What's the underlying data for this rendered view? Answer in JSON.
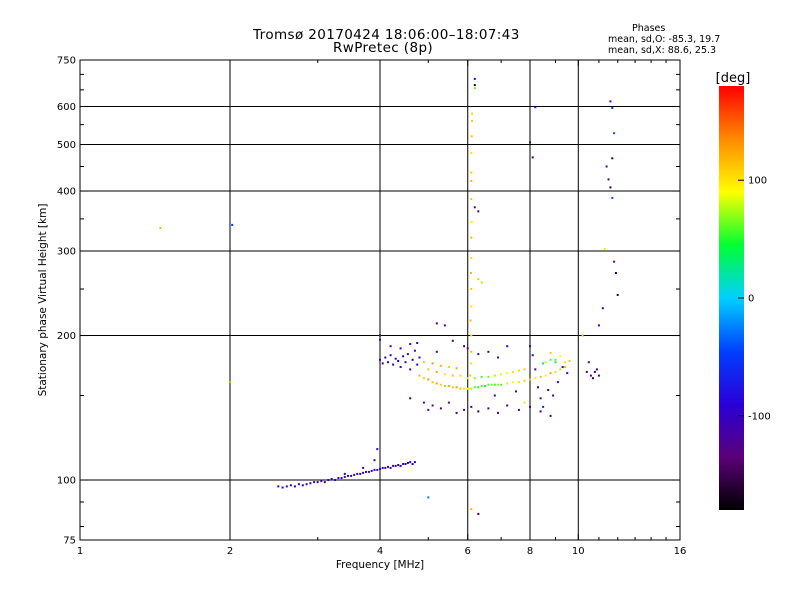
{
  "header": {
    "title_line1": "Tromsø 20170424 18:06:00–18:07:43",
    "title_line2": "RwPretec (8p)",
    "stats_title": "Phases",
    "stats_line1": "mean, sd,O: -85.3, 19.7",
    "stats_line2": "mean, sd,X:  88.6, 25.3"
  },
  "chart_data": {
    "type": "scatter",
    "xlabel": "Frequency [MHz]",
    "ylabel": "Stationary phase Virtual Height [km]",
    "x_scale": "log",
    "y_scale": "log",
    "xlim": [
      1,
      16
    ],
    "ylim": [
      75,
      750
    ],
    "x_ticks": [
      1,
      2,
      4,
      6,
      8,
      10,
      16
    ],
    "x_grid": [
      2,
      4,
      6,
      8,
      10
    ],
    "y_ticks": [
      75,
      100,
      200,
      300,
      400,
      500,
      600,
      750
    ],
    "y_grid": [
      100,
      200,
      300,
      400,
      500,
      600
    ],
    "grid": true,
    "colorbar": {
      "label": "[deg]",
      "range": [
        -180,
        180
      ],
      "ticks": [
        100,
        0,
        -100
      ],
      "colors": [
        "#000000",
        "#5a0078",
        "#2a00d8",
        "#0040ff",
        "#00d0ff",
        "#00ff30",
        "#ffff00",
        "#ff8a00",
        "#ff0000"
      ]
    },
    "series": [
      {
        "points": [
          [
            2.5,
            97,
            -110
          ],
          [
            2.55,
            96.5,
            -95
          ],
          [
            2.6,
            97,
            -105
          ],
          [
            2.65,
            97.5,
            -90
          ],
          [
            2.7,
            97,
            -100
          ],
          [
            2.75,
            98,
            -85
          ],
          [
            2.8,
            97.5,
            -95
          ],
          [
            2.85,
            98,
            -100
          ],
          [
            2.9,
            98.5,
            -88
          ],
          [
            2.95,
            99,
            -97
          ],
          [
            3.0,
            99,
            -92
          ],
          [
            3.05,
            99.5,
            -105
          ],
          [
            3.1,
            99,
            -88
          ],
          [
            3.15,
            100,
            -98
          ],
          [
            3.2,
            100.5,
            -102
          ],
          [
            3.25,
            100,
            -90
          ],
          [
            3.3,
            101,
            -96
          ],
          [
            3.35,
            101,
            -110
          ],
          [
            3.4,
            101.5,
            -85
          ],
          [
            3.45,
            102,
            -100
          ],
          [
            3.5,
            102,
            -94
          ],
          [
            3.55,
            102.5,
            -98
          ],
          [
            3.6,
            103,
            -105
          ],
          [
            3.65,
            103,
            -90
          ],
          [
            3.7,
            103.5,
            -100
          ],
          [
            3.75,
            104,
            -95
          ],
          [
            3.8,
            104,
            -108
          ],
          [
            3.85,
            104.5,
            -92
          ],
          [
            3.9,
            105,
            -100
          ],
          [
            3.95,
            105,
            -96
          ],
          [
            4.0,
            105.5,
            -104
          ],
          [
            4.05,
            106,
            -90
          ],
          [
            4.1,
            106,
            -100
          ],
          [
            4.15,
            106.5,
            -95
          ],
          [
            4.2,
            106,
            -110
          ],
          [
            4.25,
            107,
            -92
          ],
          [
            4.3,
            107,
            -99
          ],
          [
            4.35,
            107.5,
            -104
          ],
          [
            4.4,
            107,
            -95
          ],
          [
            4.45,
            108,
            -100
          ],
          [
            4.5,
            108,
            -106
          ],
          [
            4.55,
            108.5,
            -93
          ],
          [
            4.6,
            109,
            -99
          ],
          [
            4.65,
            108,
            -102
          ],
          [
            4.7,
            109,
            -97
          ],
          [
            3.4,
            103,
            -100
          ],
          [
            3.7,
            106,
            -102
          ],
          [
            3.9,
            110,
            -104
          ],
          [
            3.95,
            116,
            -106
          ],
          [
            4.0,
            178,
            -100
          ],
          [
            4.05,
            175,
            -108
          ],
          [
            4.1,
            180,
            -95
          ],
          [
            4.15,
            176,
            -104
          ],
          [
            4.2,
            182,
            -98
          ],
          [
            4.25,
            174,
            -110
          ],
          [
            4.3,
            179,
            -102
          ],
          [
            4.35,
            177,
            -96
          ],
          [
            4.4,
            172,
            -106
          ],
          [
            4.45,
            181,
            -100
          ],
          [
            4.5,
            176,
            -94
          ],
          [
            4.55,
            183,
            -108
          ],
          [
            4.6,
            170,
            -102
          ],
          [
            4.65,
            178,
            -98
          ],
          [
            4.7,
            186,
            -104
          ],
          [
            4.75,
            174,
            -110
          ],
          [
            4.8,
            180,
            -100
          ],
          [
            4.0,
            196,
            -102
          ],
          [
            4.2,
            190,
            -98
          ],
          [
            4.4,
            188,
            -106
          ],
          [
            4.6,
            192,
            -100
          ],
          [
            4.75,
            193,
            -96
          ],
          [
            4.8,
            165,
            120
          ],
          [
            4.9,
            163,
            110
          ],
          [
            5.0,
            162,
            130
          ],
          [
            5.1,
            160,
            115
          ],
          [
            5.2,
            159,
            125
          ],
          [
            5.3,
            158,
            108
          ],
          [
            5.4,
            157,
            118
          ],
          [
            5.5,
            157,
            122
          ],
          [
            5.6,
            156,
            112
          ],
          [
            5.7,
            156,
            128
          ],
          [
            5.8,
            155,
            116
          ],
          [
            5.9,
            155,
            104
          ],
          [
            6.0,
            155,
            90
          ],
          [
            6.1,
            155,
            72
          ],
          [
            6.2,
            156,
            60
          ],
          [
            6.3,
            156,
            50
          ],
          [
            6.4,
            157,
            62
          ],
          [
            6.5,
            157,
            48
          ],
          [
            6.6,
            158,
            58
          ],
          [
            6.7,
            158,
            66
          ],
          [
            6.8,
            158,
            54
          ],
          [
            6.9,
            158,
            70
          ],
          [
            7.0,
            158,
            58
          ],
          [
            7.2,
            159,
            80
          ],
          [
            7.4,
            160,
            92
          ],
          [
            7.6,
            160,
            100
          ],
          [
            7.8,
            161,
            110
          ],
          [
            8.0,
            162,
            108
          ],
          [
            8.2,
            163,
            100
          ],
          [
            8.4,
            164,
            115
          ],
          [
            8.6,
            165,
            95
          ],
          [
            8.8,
            167,
            120
          ],
          [
            9.0,
            168,
            105
          ],
          [
            9.2,
            170,
            110
          ],
          [
            9.4,
            172,
            118
          ],
          [
            5.0,
            170,
            110
          ],
          [
            5.2,
            168,
            125
          ],
          [
            5.4,
            166,
            100
          ],
          [
            5.6,
            165,
            115
          ],
          [
            5.8,
            165,
            105
          ],
          [
            6.0,
            163,
            80
          ],
          [
            6.2,
            163,
            68
          ],
          [
            6.4,
            164,
            56
          ],
          [
            6.6,
            164,
            64
          ],
          [
            6.8,
            165,
            72
          ],
          [
            7.0,
            166,
            84
          ],
          [
            7.2,
            167,
            92
          ],
          [
            7.4,
            168,
            100
          ],
          [
            7.6,
            169,
            106
          ],
          [
            7.8,
            170,
            112
          ],
          [
            4.9,
            176,
            115
          ],
          [
            5.1,
            175,
            130
          ],
          [
            5.3,
            173,
            120
          ],
          [
            5.5,
            172,
            110
          ],
          [
            5.7,
            171,
            125
          ],
          [
            8.5,
            175,
            30
          ],
          [
            8.8,
            178,
            60
          ],
          [
            9.0,
            176,
            40
          ],
          [
            4.9,
            145,
            -100
          ],
          [
            5.0,
            140,
            -130
          ],
          [
            5.1,
            143,
            -110
          ],
          [
            5.3,
            141,
            -135
          ],
          [
            5.5,
            145,
            -120
          ],
          [
            5.7,
            138,
            -140
          ],
          [
            5.9,
            140,
            -115
          ],
          [
            6.1,
            142,
            -125
          ],
          [
            6.3,
            139,
            -150
          ],
          [
            6.6,
            141,
            -110
          ],
          [
            6.9,
            138,
            -130
          ],
          [
            7.2,
            143,
            -120
          ],
          [
            7.6,
            140,
            -140
          ],
          [
            8.0,
            142,
            -115
          ],
          [
            8.4,
            139,
            -130
          ],
          [
            6.0,
            188,
            -100
          ],
          [
            6.3,
            183,
            -110
          ],
          [
            6.6,
            185,
            -90
          ],
          [
            6.9,
            180,
            -105
          ],
          [
            7.2,
            190,
            -95
          ],
          [
            5.6,
            195,
            -140
          ],
          [
            5.2,
            185,
            -130
          ],
          [
            5.9,
            190,
            -120
          ],
          [
            6.05,
            155,
            95
          ],
          [
            6.07,
            165,
            110
          ],
          [
            6.09,
            175,
            100
          ],
          [
            6.1,
            185,
            120
          ],
          [
            6.1,
            200,
            105
          ],
          [
            6.08,
            215,
            115
          ],
          [
            6.1,
            230,
            100
          ],
          [
            6.1,
            250,
            110
          ],
          [
            6.09,
            270,
            115
          ],
          [
            6.1,
            290,
            105
          ],
          [
            6.1,
            320,
            120
          ],
          [
            6.11,
            345,
            100
          ],
          [
            6.1,
            385,
            110
          ],
          [
            6.1,
            420,
            120
          ],
          [
            6.1,
            480,
            100
          ],
          [
            6.11,
            520,
            115
          ],
          [
            6.12,
            560,
            110
          ],
          [
            6.12,
            580,
            105
          ],
          [
            6.1,
            437,
            110
          ],
          [
            6.3,
            262,
            110
          ],
          [
            6.4,
            258,
            110
          ],
          [
            6.3,
            363,
            -130
          ],
          [
            6.2,
            370,
            -140
          ],
          [
            6.2,
            685,
            -95
          ],
          [
            6.2,
            665,
            -170
          ],
          [
            6.2,
            655,
            60
          ],
          [
            8.0,
            505,
            -120
          ],
          [
            8.1,
            470,
            -140
          ],
          [
            8.2,
            598,
            -90
          ],
          [
            8.0,
            190,
            -90
          ],
          [
            8.2,
            170,
            -120
          ],
          [
            8.1,
            182,
            -80
          ],
          [
            8.3,
            156,
            -100
          ],
          [
            8.4,
            148,
            -130
          ],
          [
            8.6,
            176,
            80
          ],
          [
            8.8,
            184,
            110
          ],
          [
            9.0,
            178,
            60
          ],
          [
            9.2,
            181,
            90
          ],
          [
            9.4,
            176,
            100
          ],
          [
            9.6,
            177,
            110
          ],
          [
            8.7,
            154,
            -120
          ],
          [
            8.9,
            150,
            -140
          ],
          [
            9.1,
            160,
            -90
          ],
          [
            9.3,
            172,
            -100
          ],
          [
            9.5,
            167,
            -110
          ],
          [
            8.5,
            142,
            -60
          ],
          [
            8.8,
            136,
            -100
          ],
          [
            10.4,
            168,
            -140
          ],
          [
            10.6,
            165,
            -130
          ],
          [
            10.8,
            168,
            -150
          ],
          [
            11.0,
            165,
            -140
          ],
          [
            10.5,
            176,
            -120
          ],
          [
            10.7,
            163,
            -160
          ],
          [
            10.9,
            170,
            -145
          ],
          [
            10.2,
            200,
            120
          ],
          [
            11.0,
            210,
            -100
          ],
          [
            11.6,
            615,
            -100
          ],
          [
            11.7,
            596,
            -60
          ],
          [
            11.8,
            528,
            -40
          ],
          [
            11.7,
            468,
            -150
          ],
          [
            11.5,
            423,
            -140
          ],
          [
            11.6,
            407,
            -160
          ],
          [
            11.7,
            387,
            -40
          ],
          [
            11.4,
            450,
            -120
          ],
          [
            11.3,
            303,
            100
          ],
          [
            11.8,
            285,
            -80
          ],
          [
            11.9,
            270,
            -160
          ],
          [
            12.0,
            243,
            -170
          ],
          [
            11.2,
            228,
            -90
          ],
          [
            2.0,
            160,
            130
          ],
          [
            1.45,
            335,
            120
          ],
          [
            2.02,
            340,
            -50
          ],
          [
            5.0,
            92,
            -30
          ],
          [
            6.3,
            85,
            -160
          ],
          [
            6.1,
            87,
            120
          ],
          [
            5.4,
            210,
            -130
          ],
          [
            5.2,
            212,
            -130
          ],
          [
            4.0,
            200,
            -120
          ],
          [
            4.6,
            148,
            -150
          ],
          [
            6.8,
            150,
            -90
          ],
          [
            7.5,
            153,
            -110
          ],
          [
            7.8,
            145,
            80
          ]
        ]
      }
    ]
  }
}
